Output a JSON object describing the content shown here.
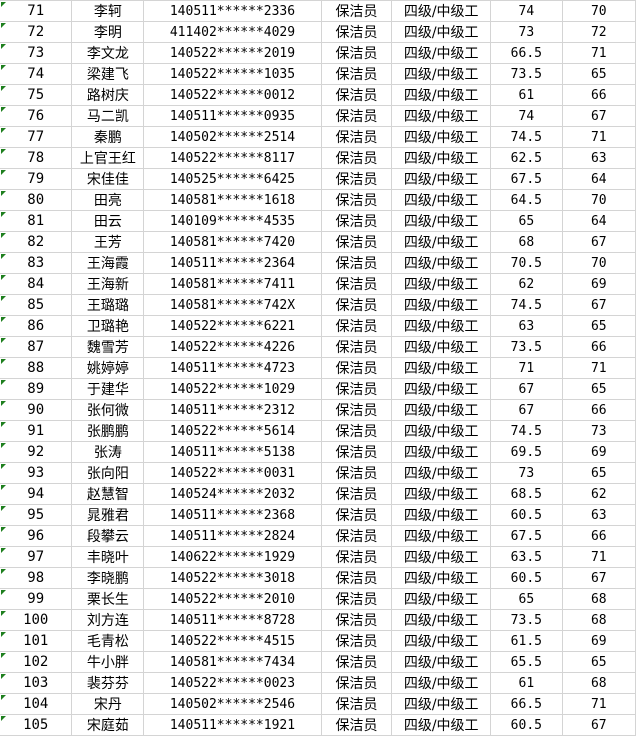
{
  "sheet": {
    "indicator_color": "#1e7f1e",
    "rows": [
      {
        "no": "71",
        "name": "李轲",
        "id": "140511******2336",
        "job": "保洁员",
        "level": "四级/中级工",
        "score1": "74",
        "score2": "70"
      },
      {
        "no": "72",
        "name": "李明",
        "id": "411402******4029",
        "job": "保洁员",
        "level": "四级/中级工",
        "score1": "73",
        "score2": "72"
      },
      {
        "no": "73",
        "name": "李文龙",
        "id": "140522******2019",
        "job": "保洁员",
        "level": "四级/中级工",
        "score1": "66.5",
        "score2": "71"
      },
      {
        "no": "74",
        "name": "梁建飞",
        "id": "140522******1035",
        "job": "保洁员",
        "level": "四级/中级工",
        "score1": "73.5",
        "score2": "65"
      },
      {
        "no": "75",
        "name": "路树庆",
        "id": "140522******0012",
        "job": "保洁员",
        "level": "四级/中级工",
        "score1": "61",
        "score2": "66"
      },
      {
        "no": "76",
        "name": "马二凯",
        "id": "140511******0935",
        "job": "保洁员",
        "level": "四级/中级工",
        "score1": "74",
        "score2": "67"
      },
      {
        "no": "77",
        "name": "秦鹏",
        "id": "140502******2514",
        "job": "保洁员",
        "level": "四级/中级工",
        "score1": "74.5",
        "score2": "71"
      },
      {
        "no": "78",
        "name": "上官王红",
        "id": "140522******8117",
        "job": "保洁员",
        "level": "四级/中级工",
        "score1": "62.5",
        "score2": "63"
      },
      {
        "no": "79",
        "name": "宋佳佳",
        "id": "140525******6425",
        "job": "保洁员",
        "level": "四级/中级工",
        "score1": "67.5",
        "score2": "64"
      },
      {
        "no": "80",
        "name": "田亮",
        "id": "140581******1618",
        "job": "保洁员",
        "level": "四级/中级工",
        "score1": "64.5",
        "score2": "70"
      },
      {
        "no": "81",
        "name": "田云",
        "id": "140109******4535",
        "job": "保洁员",
        "level": "四级/中级工",
        "score1": "65",
        "score2": "64"
      },
      {
        "no": "82",
        "name": "王芳",
        "id": "140581******7420",
        "job": "保洁员",
        "level": "四级/中级工",
        "score1": "68",
        "score2": "67"
      },
      {
        "no": "83",
        "name": "王海霞",
        "id": "140511******2364",
        "job": "保洁员",
        "level": "四级/中级工",
        "score1": "70.5",
        "score2": "70"
      },
      {
        "no": "84",
        "name": "王海新",
        "id": "140581******7411",
        "job": "保洁员",
        "level": "四级/中级工",
        "score1": "62",
        "score2": "69"
      },
      {
        "no": "85",
        "name": "王璐璐",
        "id": "140581******742X",
        "job": "保洁员",
        "level": "四级/中级工",
        "score1": "74.5",
        "score2": "67"
      },
      {
        "no": "86",
        "name": "卫璐艳",
        "id": "140522******6221",
        "job": "保洁员",
        "level": "四级/中级工",
        "score1": "63",
        "score2": "65"
      },
      {
        "no": "87",
        "name": "魏雪芳",
        "id": "140522******4226",
        "job": "保洁员",
        "level": "四级/中级工",
        "score1": "73.5",
        "score2": "66"
      },
      {
        "no": "88",
        "name": "姚婷婷",
        "id": "140511******4723",
        "job": "保洁员",
        "level": "四级/中级工",
        "score1": "71",
        "score2": "71"
      },
      {
        "no": "89",
        "name": "于建华",
        "id": "140522******1029",
        "job": "保洁员",
        "level": "四级/中级工",
        "score1": "67",
        "score2": "65"
      },
      {
        "no": "90",
        "name": "张何微",
        "id": "140511******2312",
        "job": "保洁员",
        "level": "四级/中级工",
        "score1": "67",
        "score2": "66"
      },
      {
        "no": "91",
        "name": "张鹏鹏",
        "id": "140522******5614",
        "job": "保洁员",
        "level": "四级/中级工",
        "score1": "74.5",
        "score2": "73"
      },
      {
        "no": "92",
        "name": "张涛",
        "id": "140511******5138",
        "job": "保洁员",
        "level": "四级/中级工",
        "score1": "69.5",
        "score2": "69"
      },
      {
        "no": "93",
        "name": "张向阳",
        "id": "140522******0031",
        "job": "保洁员",
        "level": "四级/中级工",
        "score1": "73",
        "score2": "65"
      },
      {
        "no": "94",
        "name": "赵慧智",
        "id": "140524******2032",
        "job": "保洁员",
        "level": "四级/中级工",
        "score1": "68.5",
        "score2": "62"
      },
      {
        "no": "95",
        "name": "晁雅君",
        "id": "140511******2368",
        "job": "保洁员",
        "level": "四级/中级工",
        "score1": "60.5",
        "score2": "63"
      },
      {
        "no": "96",
        "name": "段攀云",
        "id": "140511******2824",
        "job": "保洁员",
        "level": "四级/中级工",
        "score1": "67.5",
        "score2": "66"
      },
      {
        "no": "97",
        "name": "丰晓叶",
        "id": "140622******1929",
        "job": "保洁员",
        "level": "四级/中级工",
        "score1": "63.5",
        "score2": "71"
      },
      {
        "no": "98",
        "name": "李晓鹏",
        "id": "140522******3018",
        "job": "保洁员",
        "level": "四级/中级工",
        "score1": "60.5",
        "score2": "67"
      },
      {
        "no": "99",
        "name": "栗长生",
        "id": "140522******2010",
        "job": "保洁员",
        "level": "四级/中级工",
        "score1": "65",
        "score2": "68"
      },
      {
        "no": "100",
        "name": "刘方连",
        "id": "140511******8728",
        "job": "保洁员",
        "level": "四级/中级工",
        "score1": "73.5",
        "score2": "68"
      },
      {
        "no": "101",
        "name": "毛青松",
        "id": "140522******4515",
        "job": "保洁员",
        "level": "四级/中级工",
        "score1": "61.5",
        "score2": "69"
      },
      {
        "no": "102",
        "name": "牛小胖",
        "id": "140581******7434",
        "job": "保洁员",
        "level": "四级/中级工",
        "score1": "65.5",
        "score2": "65"
      },
      {
        "no": "103",
        "name": "裴芬芬",
        "id": "140522******0023",
        "job": "保洁员",
        "level": "四级/中级工",
        "score1": "61",
        "score2": "68"
      },
      {
        "no": "104",
        "name": "宋丹",
        "id": "140502******2546",
        "job": "保洁员",
        "level": "四级/中级工",
        "score1": "66.5",
        "score2": "71"
      },
      {
        "no": "105",
        "name": "宋庭茹",
        "id": "140511******1921",
        "job": "保洁员",
        "level": "四级/中级工",
        "score1": "60.5",
        "score2": "67"
      }
    ]
  }
}
